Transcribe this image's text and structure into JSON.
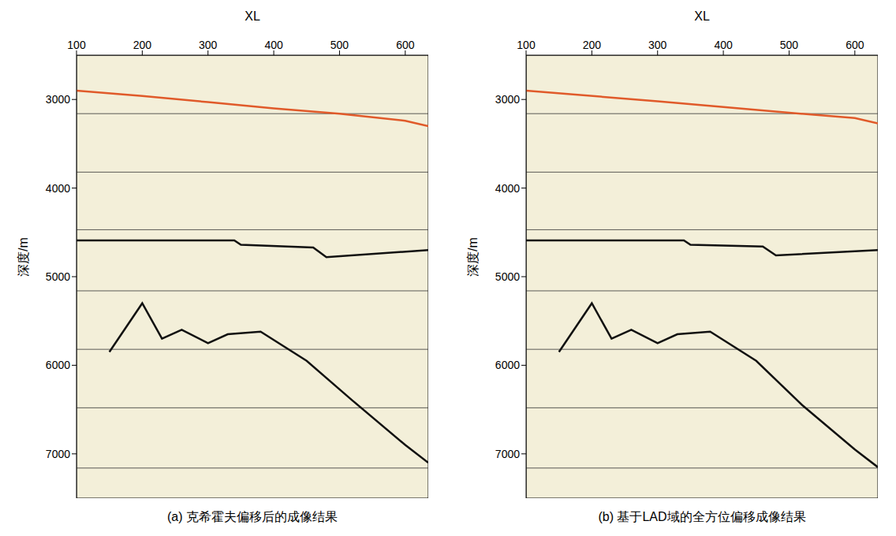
{
  "chart_data": [
    {
      "type": "seismic_section",
      "title": "(a) 克希霍夫偏移后的成像结果",
      "x_label": "XL",
      "y_label": "深度/m",
      "xlim": [
        100,
        635
      ],
      "xticks": [
        100,
        200,
        300,
        400,
        500,
        600
      ],
      "ylim": [
        2500,
        7500
      ],
      "yticks": [
        3000,
        4000,
        5000,
        6000,
        7000
      ],
      "hlines": [
        3160,
        3820,
        4470,
        5160,
        5820,
        6480,
        7160
      ],
      "series": [
        {
          "color": "#e05a2a",
          "x": [
            100,
            200,
            300,
            400,
            500,
            600,
            635
          ],
          "values": [
            2900,
            2960,
            3030,
            3100,
            3160,
            3240,
            3300
          ]
        },
        {
          "color": "#111111",
          "x": [
            100,
            340,
            350,
            460,
            480,
            635
          ],
          "values": [
            4590,
            4590,
            4640,
            4670,
            4780,
            4700
          ]
        },
        {
          "color": "#111111",
          "x": [
            150,
            200,
            230,
            260,
            300,
            330,
            380,
            450,
            520,
            600,
            635
          ],
          "values": [
            5850,
            5300,
            5700,
            5600,
            5750,
            5650,
            5620,
            5950,
            6400,
            6900,
            7100
          ]
        }
      ]
    },
    {
      "type": "seismic_section",
      "title": "(b) 基于LAD域的全方位偏移成像结果",
      "x_label": "XL",
      "y_label": "深度/m",
      "xlim": [
        100,
        635
      ],
      "xticks": [
        100,
        200,
        300,
        400,
        500,
        600
      ],
      "ylim": [
        2500,
        7500
      ],
      "yticks": [
        3000,
        4000,
        5000,
        6000,
        7000
      ],
      "hlines": [
        3160,
        3820,
        4470,
        5160,
        5820,
        6480,
        7160
      ],
      "series": [
        {
          "color": "#e05a2a",
          "x": [
            100,
            300,
            500,
            600,
            635
          ],
          "values": [
            2900,
            3020,
            3150,
            3210,
            3270
          ]
        },
        {
          "color": "#111111",
          "x": [
            100,
            340,
            350,
            460,
            480,
            635
          ],
          "values": [
            4590,
            4590,
            4640,
            4660,
            4760,
            4700
          ]
        },
        {
          "color": "#111111",
          "x": [
            150,
            200,
            230,
            260,
            300,
            330,
            380,
            450,
            520,
            600,
            635
          ],
          "values": [
            5850,
            5300,
            5700,
            5600,
            5750,
            5650,
            5620,
            5950,
            6450,
            6950,
            7150
          ]
        }
      ]
    }
  ]
}
